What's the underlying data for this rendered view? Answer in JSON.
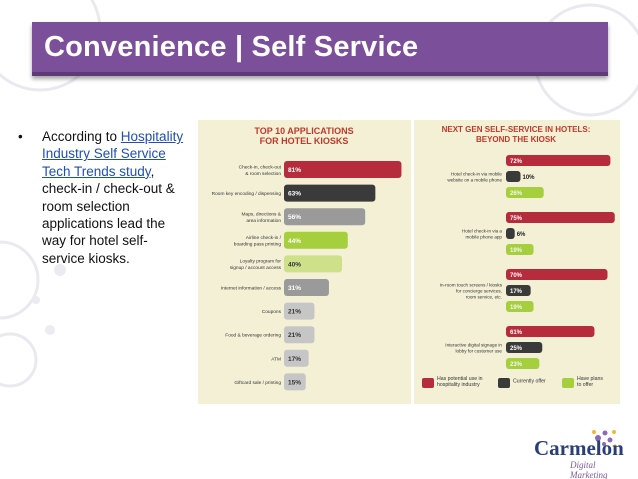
{
  "slide": {
    "title": "Convenience | Self Service",
    "bullet_marker": "•",
    "bullet_pre": "According to ",
    "bullet_link": "Hospitality Industry Self Service Tech Trends study",
    "bullet_post": ", check-in / check-out & room selection applications lead the way for hotel self-service kiosks."
  },
  "logo": {
    "brand": "Carmelon",
    "tagline": "Digital Marketing"
  },
  "colors": {
    "title_bg": "#7c4f9a",
    "red": "#b72c3c",
    "black": "#3a3a3a",
    "green": "#a6cf3d",
    "light_green": "#cfe08a",
    "grey": "#9a9a9a",
    "light_grey": "#c6c6c6",
    "panel": "#f3f0d6"
  },
  "chart_data": [
    {
      "type": "bar",
      "orientation": "horizontal",
      "title": "TOP 10 APPLICATIONS FOR HOTEL KIOSKS",
      "title_lines": [
        "TOP 10 APPLICATIONS",
        "FOR HOTEL KIOSKS"
      ],
      "categories": [
        [
          "Check-in, check-out",
          "& room selection"
        ],
        [
          "Room key encoding / dispensing"
        ],
        [
          "Maps, directions &",
          "area information"
        ],
        [
          "Airline check-in /",
          "boarding pass printing"
        ],
        [
          "Loyalty program for",
          "signup / account access"
        ],
        [
          "Internet information / access"
        ],
        [
          "Coupons"
        ],
        [
          "Food & beverage ordering"
        ],
        [
          "ATM"
        ],
        [
          "Giftcard sale / printing"
        ]
      ],
      "values": [
        81,
        63,
        56,
        44,
        40,
        31,
        21,
        21,
        17,
        15
      ],
      "labels": [
        "81%",
        "63%",
        "56%",
        "44%",
        "40%",
        "31%",
        "21%",
        "21%",
        "17%",
        "15%"
      ],
      "bar_colors": [
        "red",
        "black",
        "grey",
        "green",
        "light_green",
        "grey",
        "light_grey",
        "light_grey",
        "light_grey",
        "light_grey"
      ]
    },
    {
      "type": "bar",
      "orientation": "horizontal",
      "title": "NEXT GEN SELF-SERVICE IN HOTELS: BEYOND THE KIOSK",
      "title_lines": [
        "NEXT GEN SELF-SERVICE IN HOTELS:",
        "BEYOND THE KIOSK"
      ],
      "categories": [
        [
          "Hotel check-in via mobile",
          "website on a mobile phone"
        ],
        [
          "Hotel check-in via a",
          "mobile phone app"
        ],
        [
          "In-room touch screens / kiosks",
          "for concierge services,",
          "room service, etc."
        ],
        [
          "Interactive digital signage in",
          "lobby for customer use"
        ]
      ],
      "series": [
        {
          "name": "Has potential use in hospitality industry",
          "legend_lines": [
            "Has potential use in",
            "hospitality industry"
          ],
          "color": "red",
          "values": [
            72,
            75,
            70,
            61
          ],
          "labels": [
            "72%",
            "75%",
            "70%",
            "61%"
          ]
        },
        {
          "name": "Currently offer",
          "legend_lines": [
            "Currently offer"
          ],
          "color": "black",
          "values": [
            10,
            6,
            17,
            25
          ],
          "labels": [
            "10%",
            "6%",
            "17%",
            "25%"
          ]
        },
        {
          "name": "Have plans to offer",
          "legend_lines": [
            "Have plans",
            "to offer"
          ],
          "color": "green",
          "values": [
            26,
            19,
            19,
            23
          ],
          "labels": [
            "26%",
            "19%",
            "19%",
            "23%"
          ]
        }
      ],
      "legend_position": "bottom"
    }
  ]
}
